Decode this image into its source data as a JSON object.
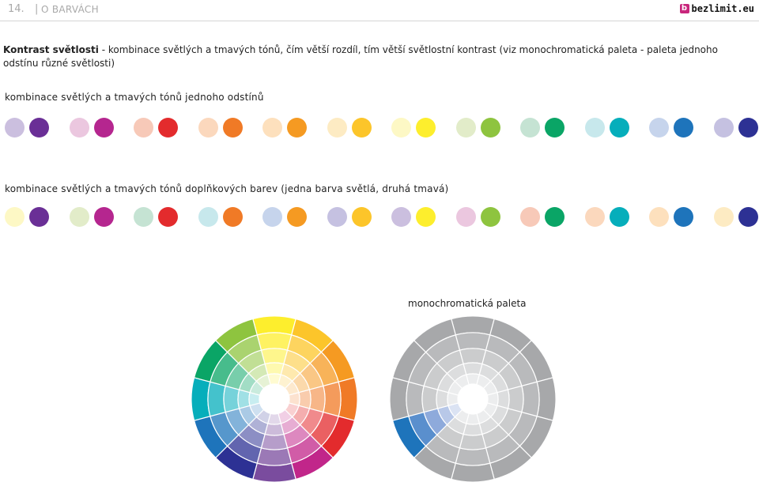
{
  "header": {
    "page_number": "14.",
    "separator": "|",
    "section": "O BARVÁCH",
    "logo_mark": "b",
    "logo_text": "bezlimit.eu"
  },
  "intro": {
    "title": "Kontrast světlosti",
    "text": " - kombinace světlých a tmavých tónů, čím větší rozdíl, tím větší světlostní kontrast (viz monochromatická paleta - paleta jednoho odstínu různé světlosti)"
  },
  "row1": {
    "label": "kombinace světlých a tmavých tónů jednoho odstínů",
    "pairs": [
      [
        "#cbbfdf",
        "#6a2f96"
      ],
      [
        "#ebc7df",
        "#b5268f"
      ],
      [
        "#f7c9b8",
        "#e32b2d"
      ],
      [
        "#fbd8bd",
        "#f07a26"
      ],
      [
        "#fde0bd",
        "#f59a22"
      ],
      [
        "#fdebc3",
        "#fcc52a"
      ],
      [
        "#fdf8c5",
        "#fdee2d"
      ],
      [
        "#e2ecc9",
        "#8ec43f"
      ],
      [
        "#c5e3d3",
        "#0aa566"
      ],
      [
        "#c7e8ec",
        "#06aebb"
      ],
      [
        "#c6d4ec",
        "#1e74bb"
      ],
      [
        "#c5c1e1",
        "#2d3194"
      ]
    ]
  },
  "row2": {
    "label": "kombinace světlých a tmavých tónů doplňkových barev (jedna barva světlá, druhá tmavá)",
    "pairs": [
      [
        "#fdf8c5",
        "#6a2f96"
      ],
      [
        "#e2ecc9",
        "#b5268f"
      ],
      [
        "#c5e3d3",
        "#e32b2d"
      ],
      [
        "#c7e8ec",
        "#f07a26"
      ],
      [
        "#c6d4ec",
        "#f59a22"
      ],
      [
        "#c5c1e1",
        "#fcc52a"
      ],
      [
        "#cbbfdf",
        "#fdee2d"
      ],
      [
        "#ebc7df",
        "#8ec43f"
      ],
      [
        "#f7c9b8",
        "#0aa566"
      ],
      [
        "#fbd8bd",
        "#06aebb"
      ],
      [
        "#fde0bd",
        "#1e74bb"
      ],
      [
        "#fdebc3",
        "#2d3194"
      ]
    ]
  },
  "wheels": {
    "mono_label": "monochromatická paleta",
    "hues": [
      "#fdee2d",
      "#fcc52a",
      "#f59a22",
      "#f07a26",
      "#e32b2d",
      "#c1268a",
      "#7a4c9e",
      "#2d3194",
      "#1e74bb",
      "#06aebb",
      "#0aa566",
      "#8ec43f"
    ],
    "mono_greys": [
      "#a7a8aa",
      "#b9babc",
      "#cbcccd",
      "#dcddde",
      "#ecedee"
    ],
    "mono_blues": [
      "#1e74bb",
      "#5a8fcd",
      "#8eaadb",
      "#b8c8e8",
      "#dbe3f3"
    ]
  }
}
